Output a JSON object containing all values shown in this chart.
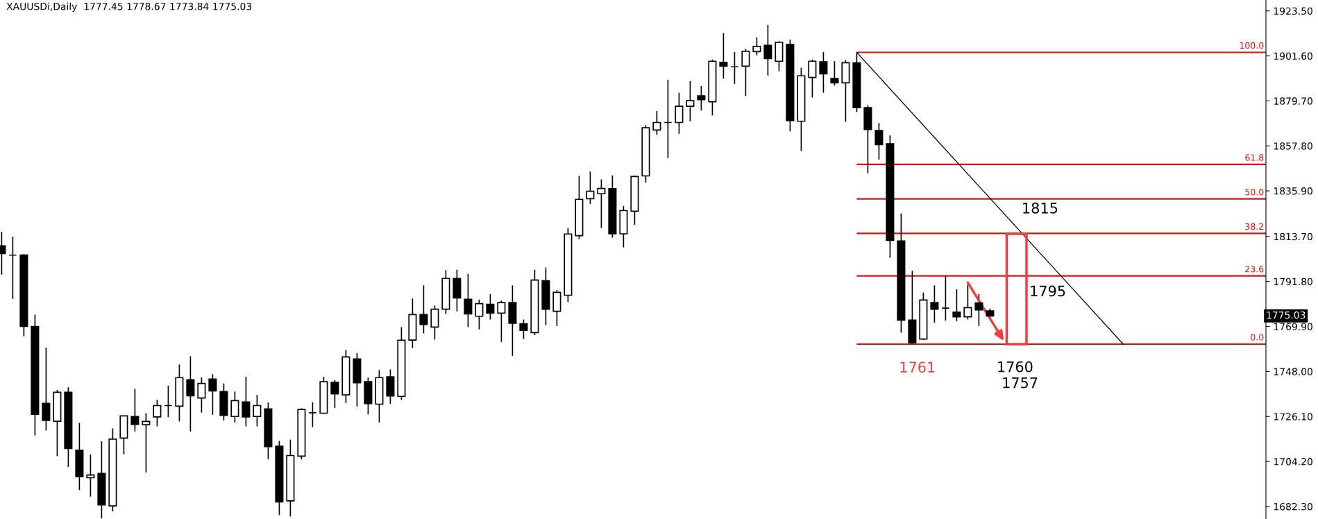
{
  "chart_data": {
    "type": "candlestick",
    "title": "XAUUSDi,Daily  1777.45 1778.67 1773.84 1775.03",
    "categories": [
      null,
      null,
      null,
      null,
      null,
      null,
      null,
      null,
      null,
      null,
      null,
      null,
      null,
      null,
      null,
      null,
      null,
      null,
      null,
      null,
      null,
      null,
      null,
      null,
      null,
      null,
      null,
      null,
      null,
      null,
      null,
      null,
      null,
      null,
      null,
      null,
      null,
      null,
      null,
      null,
      null,
      null,
      null,
      null,
      null,
      null,
      null,
      null,
      null,
      null,
      null,
      null,
      null,
      null,
      null,
      null,
      null,
      null,
      null,
      null,
      null,
      null,
      null,
      null,
      null,
      null,
      null,
      null,
      null,
      null,
      null,
      null,
      null,
      null,
      null,
      null,
      null,
      null,
      null,
      null,
      null,
      null,
      null,
      null,
      null,
      null,
      null,
      null,
      null,
      null,
      null,
      null,
      null,
      null,
      null,
      null,
      null,
      null,
      null,
      null,
      null,
      null,
      null,
      null,
      null,
      null,
      null,
      null,
      null,
      null,
      null,
      null,
      null,
      null
    ],
    "ohlc": [
      [
        1809.1,
        1816.0,
        1795.1,
        1805.4
      ],
      [
        1804.6,
        1813.6,
        1783.3,
        1804.6
      ],
      [
        1804.7,
        1805.1,
        1765.1,
        1769.9
      ],
      [
        1769.9,
        1775.7,
        1716.9,
        1727.1
      ],
      [
        1732.5,
        1759.6,
        1719.3,
        1724.2
      ],
      [
        1723.8,
        1739.0,
        1706.8,
        1737.9
      ],
      [
        1737.9,
        1740.3,
        1701.6,
        1710.5
      ],
      [
        1709.7,
        1723.0,
        1690.3,
        1696.8
      ],
      [
        1696.3,
        1707.6,
        1687.1,
        1697.6
      ],
      [
        1698.4,
        1714.0,
        1676.5,
        1683.1
      ],
      [
        1682.6,
        1720.3,
        1679.9,
        1715.1
      ],
      [
        1715.6,
        1726.4,
        1707.7,
        1726.4
      ],
      [
        1726.1,
        1739.6,
        1718.8,
        1722.2
      ],
      [
        1722.1,
        1727.7,
        1698.9,
        1723.7
      ],
      [
        1725.9,
        1734.3,
        1721.3,
        1731.4
      ],
      [
        1731.4,
        1741.1,
        1725.8,
        1731.4
      ],
      [
        1731.1,
        1751.4,
        1723.7,
        1745.0
      ],
      [
        1744.0,
        1755.4,
        1718.8,
        1736.2
      ],
      [
        1735.1,
        1745.1,
        1728.0,
        1742.2
      ],
      [
        1744.3,
        1746.7,
        1726.9,
        1738.5
      ],
      [
        1738.2,
        1742.2,
        1724.2,
        1726.6
      ],
      [
        1726.1,
        1738.2,
        1723.2,
        1733.8
      ],
      [
        1733.2,
        1745.4,
        1721.3,
        1725.9
      ],
      [
        1726.1,
        1736.6,
        1721.3,
        1731.4
      ],
      [
        1729.8,
        1732.9,
        1705.3,
        1711.4
      ],
      [
        1711.6,
        1714.2,
        1678.1,
        1684.5
      ],
      [
        1685.0,
        1714.8,
        1677.4,
        1707.1
      ],
      [
        1706.8,
        1730.1,
        1705.3,
        1729.5
      ],
      [
        1727.9,
        1733.0,
        1720.9,
        1727.9
      ],
      [
        1727.7,
        1745.4,
        1727.4,
        1743.0
      ],
      [
        1742.7,
        1743.8,
        1730.3,
        1737.1
      ],
      [
        1736.6,
        1758.5,
        1732.7,
        1755.1
      ],
      [
        1754.1,
        1757.0,
        1730.9,
        1742.5
      ],
      [
        1743.0,
        1745.1,
        1727.1,
        1732.4
      ],
      [
        1732.1,
        1748.7,
        1723.2,
        1745.0
      ],
      [
        1745.4,
        1749.0,
        1732.2,
        1736.1
      ],
      [
        1735.9,
        1769.6,
        1734.2,
        1763.2
      ],
      [
        1763.3,
        1783.5,
        1759.5,
        1775.7
      ],
      [
        1775.7,
        1789.9,
        1766.5,
        1770.9
      ],
      [
        1769.6,
        1780.1,
        1763.5,
        1778.3
      ],
      [
        1778.3,
        1797.3,
        1776.0,
        1793.3
      ],
      [
        1793.3,
        1797.5,
        1777.3,
        1783.8
      ],
      [
        1783.1,
        1795.5,
        1769.6,
        1776.0
      ],
      [
        1774.9,
        1783.0,
        1768.5,
        1781.0
      ],
      [
        1780.7,
        1785.7,
        1773.3,
        1776.4
      ],
      [
        1776.4,
        1782.5,
        1762.4,
        1781.5
      ],
      [
        1781.5,
        1789.9,
        1755.6,
        1771.5
      ],
      [
        1771.2,
        1773.3,
        1763.8,
        1768.0
      ],
      [
        1766.9,
        1797.5,
        1765.7,
        1792.5
      ],
      [
        1792.2,
        1798.6,
        1770.6,
        1778.3
      ],
      [
        1777.3,
        1787.6,
        1770.1,
        1786.5
      ],
      [
        1785.1,
        1817.9,
        1781.8,
        1814.9
      ],
      [
        1814.1,
        1843.2,
        1812.5,
        1831.8
      ],
      [
        1832.1,
        1845.3,
        1829.5,
        1835.7
      ],
      [
        1834.5,
        1841.5,
        1817.8,
        1837.1
      ],
      [
        1837.0,
        1843.4,
        1813.1,
        1815.0
      ],
      [
        1815.0,
        1828.6,
        1808.4,
        1826.3
      ],
      [
        1826.0,
        1843.4,
        1819.4,
        1842.9
      ],
      [
        1843.2,
        1867.9,
        1839.9,
        1866.6
      ],
      [
        1865.5,
        1874.8,
        1863.2,
        1869.2
      ],
      [
        1869.2,
        1890.0,
        1851.9,
        1869.2
      ],
      [
        1869.2,
        1883.7,
        1863.7,
        1877.1
      ],
      [
        1877.1,
        1889.3,
        1869.8,
        1879.8
      ],
      [
        1882.2,
        1886.9,
        1875.0,
        1880.3
      ],
      [
        1879.3,
        1899.8,
        1872.6,
        1899.0
      ],
      [
        1898.5,
        1912.7,
        1890.5,
        1896.6
      ],
      [
        1896.3,
        1903.5,
        1888.0,
        1896.3
      ],
      [
        1896.6,
        1905.0,
        1882.1,
        1903.8
      ],
      [
        1903.7,
        1910.6,
        1901.9,
        1906.2
      ],
      [
        1906.7,
        1916.7,
        1892.1,
        1900.3
      ],
      [
        1899.0,
        1908.7,
        1894.2,
        1908.2
      ],
      [
        1907.2,
        1909.5,
        1864.8,
        1870.1
      ],
      [
        1869.8,
        1895.8,
        1855.3,
        1891.9
      ],
      [
        1891.1,
        1899.8,
        1881.4,
        1899.0
      ],
      [
        1898.7,
        1903.5,
        1883.7,
        1892.9
      ],
      [
        1890.6,
        1899.0,
        1887.1,
        1888.5
      ],
      [
        1888.5,
        1899.5,
        1869.5,
        1898.3
      ],
      [
        1898.2,
        1903.0,
        1874.3,
        1876.4
      ],
      [
        1876.4,
        1877.6,
        1844.5,
        1865.8
      ],
      [
        1865.3,
        1868.9,
        1851.1,
        1858.4
      ],
      [
        1858.9,
        1862.9,
        1803.4,
        1811.8
      ],
      [
        1811.5,
        1824.9,
        1766.9,
        1773.0
      ],
      [
        1773.0,
        1797.0,
        1761.2,
        1762.0
      ],
      [
        1763.8,
        1786.4,
        1763.3,
        1782.8
      ],
      [
        1781.5,
        1789.9,
        1771.7,
        1778.3
      ],
      [
        1778.8,
        1794.3,
        1772.8,
        1778.8
      ],
      [
        1776.9,
        1788.0,
        1772.5,
        1774.6
      ],
      [
        1774.6,
        1790.2,
        1773.3,
        1779.1
      ],
      [
        1781.4,
        1785.7,
        1770.1,
        1778.0
      ],
      [
        1777.45,
        1778.67,
        1773.84,
        1775.03
      ],
      null,
      null,
      null,
      null,
      null,
      null,
      null,
      null,
      null,
      null,
      null,
      null,
      null,
      null,
      null,
      null,
      null,
      null,
      null,
      null,
      null,
      null,
      null,
      null
    ],
    "series": [
      {
        "type": "line",
        "color": "#000000",
        "values": [
          null,
          null,
          null,
          null,
          null,
          null,
          null,
          null,
          null,
          null,
          null,
          null,
          null,
          null,
          null,
          null,
          null,
          null,
          null,
          null,
          null,
          null,
          null,
          null,
          null,
          null,
          null,
          null,
          null,
          null,
          null,
          null,
          null,
          null,
          null,
          null,
          null,
          null,
          null,
          null,
          null,
          null,
          null,
          null,
          null,
          null,
          null,
          null,
          null,
          null,
          null,
          null,
          null,
          null,
          null,
          null,
          null,
          null,
          null,
          null,
          null,
          null,
          null,
          null,
          null,
          null,
          null,
          null,
          null,
          null,
          null,
          null,
          null,
          null,
          null,
          null,
          null,
          1903.3,
          null,
          null,
          null,
          null,
          null,
          null,
          null,
          null,
          null,
          null,
          null,
          null,
          null,
          null,
          null,
          null,
          null,
          null,
          null,
          null,
          null,
          null,
          null,
          1761.3,
          null,
          null,
          null,
          null,
          null,
          null,
          null,
          null,
          null,
          null,
          null,
          null
        ]
      }
    ],
    "ylim": [
      1676.2,
      1928.8
    ],
    "yticks": [
      {
        "value": 1682.3,
        "label": "1682.30"
      },
      {
        "value": 1704.2,
        "label": "1704.20"
      },
      {
        "value": 1726.1,
        "label": "1726.10"
      },
      {
        "value": 1748.0,
        "label": "1748.00"
      },
      {
        "value": 1769.9,
        "label": "1769.90"
      },
      {
        "value": 1791.8,
        "label": "1791.80"
      },
      {
        "value": 1813.7,
        "label": "1813.70"
      },
      {
        "value": 1835.9,
        "label": "1835.90"
      },
      {
        "value": 1857.8,
        "label": "1857.80"
      },
      {
        "value": 1879.7,
        "label": "1879.70"
      },
      {
        "value": 1901.6,
        "label": "1901.60"
      },
      {
        "value": 1923.5,
        "label": "1923.50"
      }
    ],
    "ref_lines": [
      {
        "axis": "y",
        "value": 1903.3,
        "color": "#e01010"
      },
      {
        "axis": "y",
        "value": 1848.8,
        "color": "#e01010"
      },
      {
        "axis": "y",
        "value": 1832.0,
        "color": "#e01010"
      },
      {
        "axis": "y",
        "value": 1815.2,
        "color": "#e01010"
      },
      {
        "axis": "y",
        "value": 1794.5,
        "color": "#e01010"
      },
      {
        "axis": "y",
        "value": 1761.3,
        "color": "#e01010"
      }
    ],
    "annotations": [
      {
        "text": "1815",
        "y": 1815.2
      },
      {
        "text": "1795",
        "y": 1794.5
      },
      {
        "text": "1761",
        "y": 1761.2
      },
      {
        "text": "1760",
        "y": 1760
      },
      "1757",
      "1775.03",
      {
        "text": "100.0",
        "y": 1903.3
      },
      {
        "text": "61.8",
        "y": 1848.8
      },
      {
        "text": "50.0",
        "y": 1832.0
      },
      {
        "text": "38.2",
        "y": 1815.2
      },
      {
        "text": "23.6",
        "y": 1794.5
      },
      {
        "text": "0.0",
        "y": 1761.3
      }
    ],
    "grid": false,
    "tick_labels": "y"
  }
}
